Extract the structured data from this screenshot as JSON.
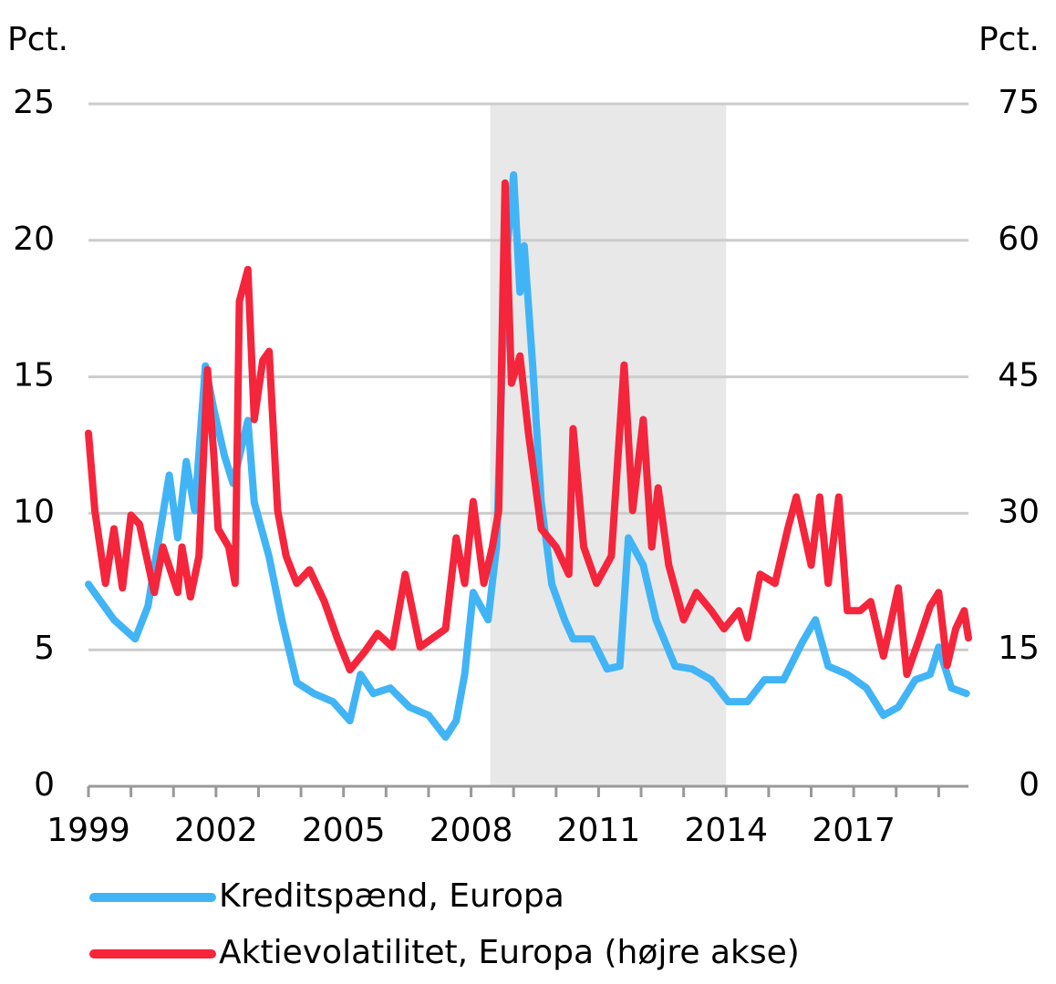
{
  "chart_data": {
    "type": "line",
    "ylabel": "Pct.",
    "y2label": "Pct.",
    "xlim": [
      1999,
      2019.7
    ],
    "xticks": [
      1999,
      2002,
      2005,
      2008,
      2011,
      2014,
      2017
    ],
    "xticks_minor": [
      1999,
      2000,
      2001,
      2002,
      2003,
      2004,
      2005,
      2006,
      2007,
      2008,
      2009,
      2010,
      2011,
      2012,
      2013,
      2014,
      2015,
      2016,
      2017,
      2018,
      2019
    ],
    "ylim": [
      0,
      25
    ],
    "yticks": [
      0,
      5,
      10,
      15,
      20,
      25
    ],
    "y2lim": [
      0,
      75
    ],
    "y2ticks": [
      0,
      15,
      30,
      45,
      60,
      75
    ],
    "grid": true,
    "shaded_span": [
      2008.45,
      2014
    ],
    "shade_color": "#e8e8e8",
    "series": [
      {
        "name": "Kreditspænd, Europa",
        "color": "#41b4f6",
        "axis": "y",
        "x": [
          1999.0,
          1999.6,
          2000.1,
          2000.4,
          2000.9,
          2001.1,
          2001.3,
          2001.5,
          2001.75,
          2001.95,
          2002.2,
          2002.4,
          2002.75,
          2002.9,
          2003.25,
          2003.55,
          2003.9,
          2004.3,
          2004.75,
          2005.15,
          2005.4,
          2005.7,
          2006.1,
          2006.55,
          2007.0,
          2007.4,
          2007.65,
          2007.85,
          2008.05,
          2008.4,
          2008.6,
          2008.8,
          2009.0,
          2009.15,
          2009.25,
          2009.45,
          2009.65,
          2009.9,
          2010.2,
          2010.4,
          2010.85,
          2011.2,
          2011.5,
          2011.7,
          2012.05,
          2012.35,
          2012.8,
          2013.2,
          2013.65,
          2014.05,
          2014.5,
          2014.9,
          2015.35,
          2015.8,
          2016.1,
          2016.4,
          2016.85,
          2017.3,
          2017.7,
          2018.05,
          2018.45,
          2018.8,
          2019.0,
          2019.3,
          2019.65
        ],
        "values": [
          7.4,
          6.1,
          5.4,
          6.6,
          11.4,
          9.1,
          11.9,
          10.1,
          15.4,
          13.8,
          12.1,
          11.1,
          13.4,
          10.4,
          8.4,
          6.1,
          3.8,
          3.4,
          3.1,
          2.4,
          4.1,
          3.4,
          3.6,
          2.9,
          2.6,
          1.8,
          2.4,
          4.1,
          7.1,
          6.1,
          8.8,
          18.8,
          22.4,
          18.1,
          19.8,
          15.4,
          10.4,
          7.4,
          6.1,
          5.4,
          5.4,
          4.3,
          4.4,
          9.1,
          8.1,
          6.1,
          4.4,
          4.3,
          3.9,
          3.1,
          3.1,
          3.9,
          3.9,
          5.3,
          6.1,
          4.4,
          4.1,
          3.6,
          2.6,
          2.9,
          3.9,
          4.1,
          5.1,
          3.6,
          3.4
        ]
      },
      {
        "name": "Aktievolatilitet, Europa (højre akse)",
        "color": "#f5253c",
        "axis": "y2",
        "x": [
          1999.0,
          1999.15,
          1999.4,
          1999.6,
          1999.8,
          2000.0,
          2000.2,
          2000.55,
          2000.75,
          2001.1,
          2001.2,
          2001.4,
          2001.6,
          2001.8,
          2001.95,
          2002.05,
          2002.3,
          2002.45,
          2002.55,
          2002.75,
          2002.9,
          2003.1,
          2003.25,
          2003.45,
          2003.65,
          2003.9,
          2004.2,
          2004.55,
          2004.85,
          2005.15,
          2005.5,
          2005.8,
          2006.15,
          2006.45,
          2006.8,
          2007.1,
          2007.4,
          2007.65,
          2007.85,
          2008.05,
          2008.3,
          2008.5,
          2008.65,
          2008.8,
          2008.95,
          2009.15,
          2009.35,
          2009.65,
          2010.0,
          2010.3,
          2010.4,
          2010.65,
          2010.95,
          2011.3,
          2011.6,
          2011.8,
          2012.05,
          2012.25,
          2012.4,
          2012.65,
          2013.0,
          2013.3,
          2013.65,
          2013.95,
          2014.3,
          2014.5,
          2014.8,
          2015.15,
          2015.45,
          2015.65,
          2016.0,
          2016.2,
          2016.4,
          2016.65,
          2016.85,
          2017.15,
          2017.4,
          2017.7,
          2018.05,
          2018.25,
          2018.55,
          2018.8,
          2019.0,
          2019.2,
          2019.4,
          2019.6,
          2019.7
        ],
        "values": [
          38.8,
          30.3,
          22.3,
          28.3,
          21.8,
          29.8,
          28.8,
          21.3,
          26.3,
          21.3,
          26.3,
          20.8,
          25.3,
          45.8,
          36.3,
          28.3,
          26.3,
          22.3,
          53.3,
          56.8,
          40.3,
          46.8,
          47.8,
          30.3,
          25.3,
          22.3,
          23.8,
          20.3,
          16.3,
          12.8,
          14.8,
          16.8,
          15.3,
          23.3,
          15.3,
          16.3,
          17.3,
          27.3,
          22.3,
          31.3,
          22.3,
          26.3,
          30.3,
          66.3,
          44.3,
          47.3,
          38.8,
          28.3,
          26.3,
          23.3,
          39.3,
          26.3,
          22.3,
          25.3,
          46.3,
          30.3,
          40.3,
          26.3,
          32.8,
          24.3,
          18.3,
          21.3,
          19.3,
          17.3,
          19.3,
          16.3,
          23.3,
          22.3,
          28.3,
          31.8,
          24.3,
          31.8,
          22.3,
          31.8,
          19.3,
          19.3,
          20.3,
          14.3,
          21.8,
          12.3,
          16.3,
          19.8,
          21.3,
          13.3,
          17.3,
          19.3,
          16.3
        ]
      }
    ]
  }
}
